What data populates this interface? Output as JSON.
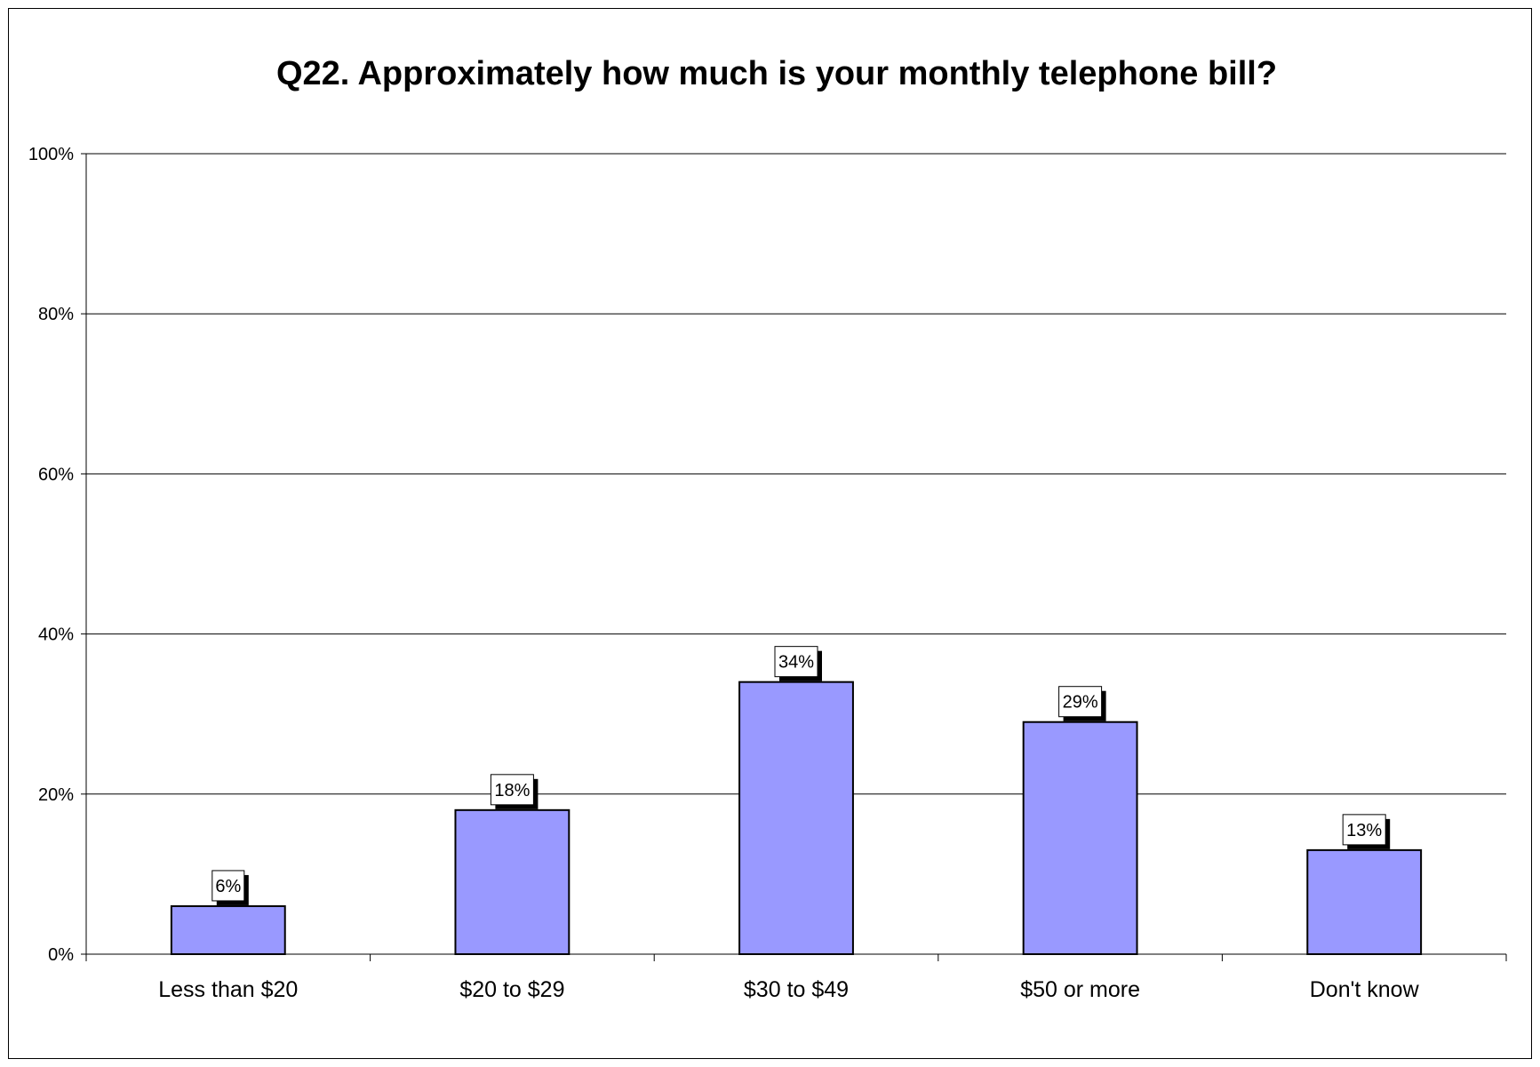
{
  "chart_data": {
    "type": "bar",
    "title": "Q22.  Approximately how much is your monthly telephone bill?",
    "xlabel": "",
    "ylabel": "",
    "categories": [
      "Less than $20",
      "$20 to $29",
      "$30 to $49",
      "$50 or more",
      "Don't know"
    ],
    "values": [
      6,
      18,
      34,
      29,
      13
    ],
    "data_labels": [
      "6%",
      "18%",
      "34%",
      "29%",
      "13%"
    ],
    "ylim": [
      0,
      100
    ],
    "yticks": [
      0,
      20,
      40,
      60,
      80,
      100
    ],
    "ytick_labels": [
      "0%",
      "20%",
      "40%",
      "60%",
      "80%",
      "100%"
    ],
    "grid": true,
    "legend": "none",
    "colors": {
      "bar_fill": "#9999ff",
      "bar_stroke": "#000000",
      "gridline": "#000000",
      "label_box": "#ffffff",
      "label_shadow": "#000000"
    }
  }
}
